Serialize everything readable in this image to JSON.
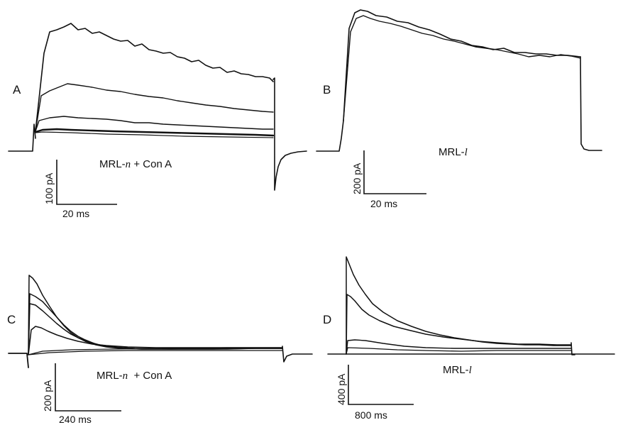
{
  "panels": [
    {
      "id": "A",
      "label": "A",
      "condition_main": "MRL-",
      "condition_italic": "n",
      "condition_suffix": " + Con A",
      "scale_current": "100 pA",
      "scale_time": "20 ms",
      "trace_count": 4
    },
    {
      "id": "B",
      "label": "B",
      "condition_main": "MRL-",
      "condition_italic": "l",
      "condition_suffix": "",
      "scale_current": "200 pA",
      "scale_time": "20 ms",
      "trace_count": 2
    },
    {
      "id": "C",
      "label": "C",
      "condition_main": "MRL-",
      "condition_italic": "n",
      "condition_suffix": "  + Con A",
      "scale_current": "200 pA",
      "scale_time": "240 ms",
      "trace_count": 6
    },
    {
      "id": "D",
      "label": "D",
      "condition_main": "MRL-",
      "condition_italic": "l",
      "condition_suffix": "",
      "scale_current": "400 pA",
      "scale_time": "800 ms",
      "trace_count": 3
    }
  ]
}
